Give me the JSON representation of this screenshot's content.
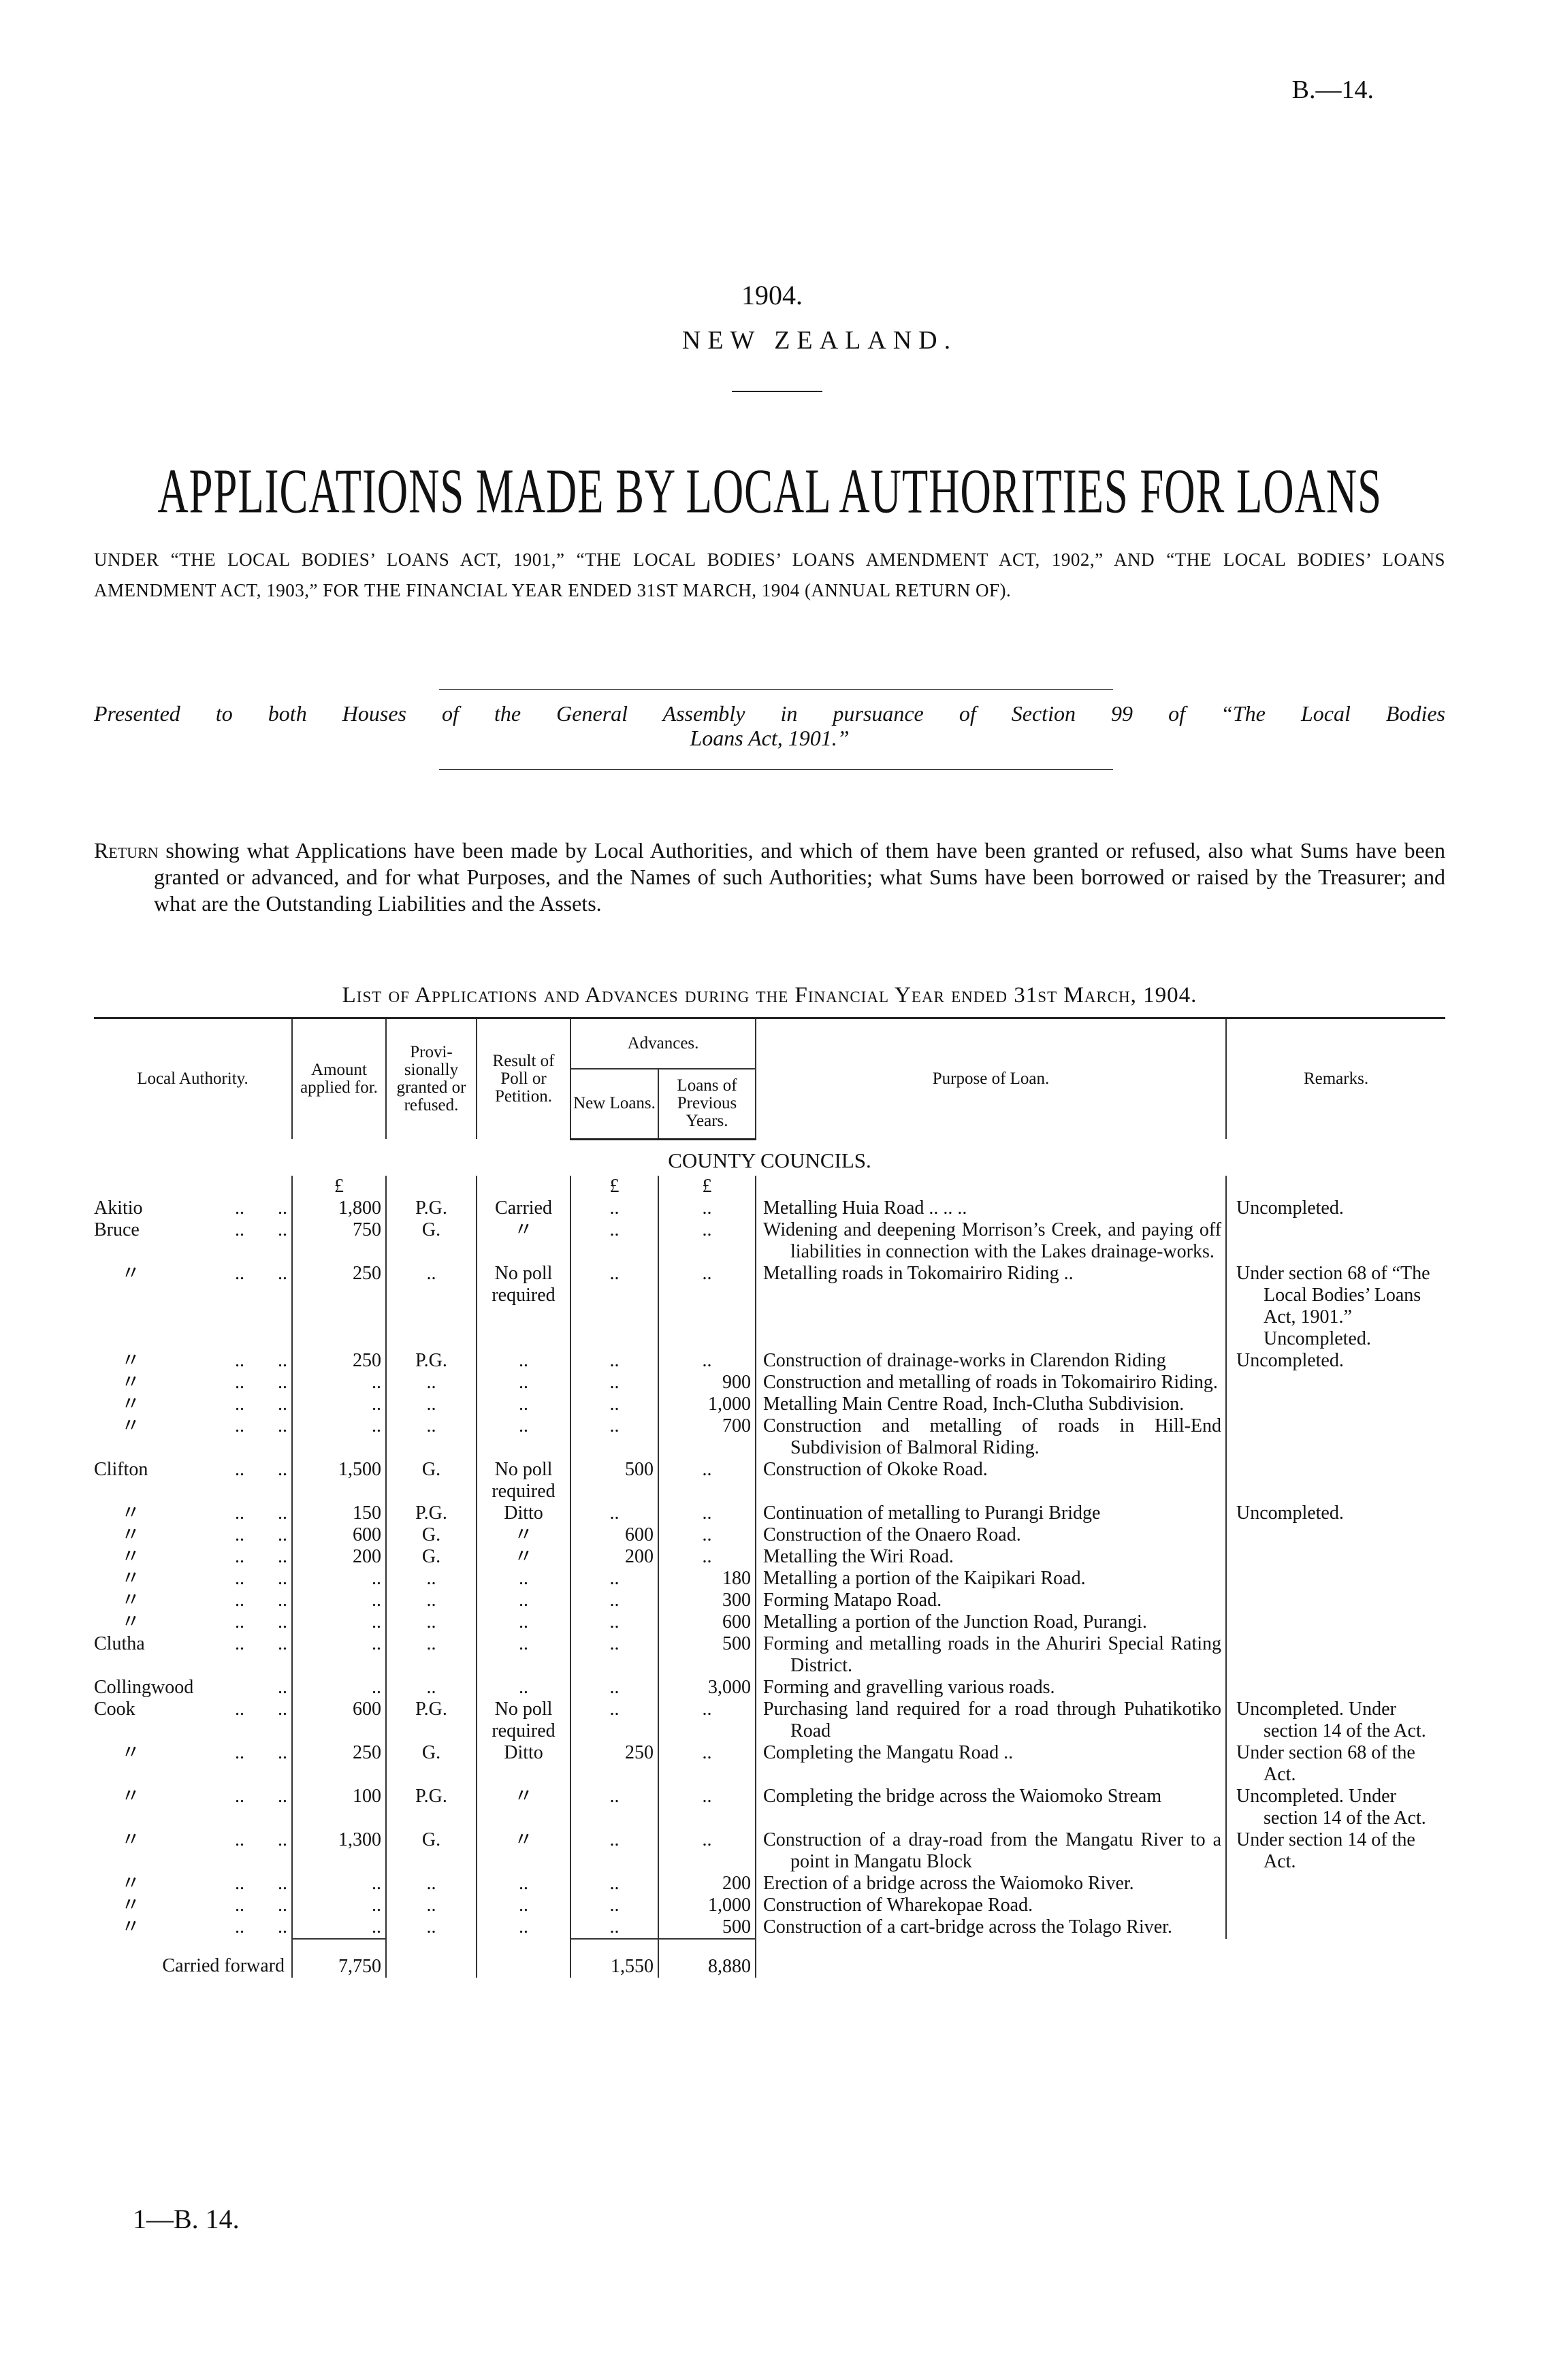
{
  "header": {
    "reference": "B.—14.",
    "year": "1904.",
    "country": "NEW ZEALAND.",
    "title": "APPLICATIONS MADE BY LOCAL AUTHORITIES FOR LOANS",
    "subtitle": "UNDER “THE LOCAL BODIES’ LOANS ACT, 1901,” “THE LOCAL BODIES’ LOANS AMENDMENT ACT, 1902,” AND “THE LOCAL BODIES’ LOANS AMENDMENT ACT, 1903,” FOR THE FINANCIAL YEAR ENDED 31ST MARCH, 1904 (ANNUAL RETURN OF).",
    "presented_line1": "Presented to both Houses of the General Assembly in pursuance of Section 99 of “The Local Bodies",
    "presented_line2": "Loans Act, 1901.”"
  },
  "return_text": {
    "lead": "Return",
    "body": " showing what Applications have been made by Local Authorities, and which of them have been granted or refused, also what Sums have been granted or advanced, and for what Purposes, and the Names of such Authorities; what Sums have been borrowed or raised by the Treasurer; and what are the Outstanding Liabilities and the Assets."
  },
  "list_title": "List of Applications and Advances during the Financial Year ended 31st March, 1904.",
  "table": {
    "headers": {
      "local_authority": "Local Authority.",
      "amount": "Amount applied for.",
      "provisional": "Provi-sionally granted or refused.",
      "result": "Result of Poll or Petition.",
      "advances": "Advances.",
      "new_loans": "New Loans.",
      "previous_loans": "Loans of Previous Years.",
      "purpose": "Purpose of Loan.",
      "remarks": "Remarks."
    },
    "section": "COUNTY COUNCILS.",
    "currency": "£",
    "rows": [
      {
        "authority": "Akitio",
        "amount": "1,800",
        "prov": "P.G.",
        "result": "Carried",
        "new": "..",
        "prev": "..",
        "purpose": "Metalling Huia Road .. .. ..",
        "remarks": "Uncompleted."
      },
      {
        "authority": "Bruce",
        "amount": "750",
        "prov": "G.",
        "result": "〃",
        "new": "..",
        "prev": "..",
        "purpose": "Widening and deepening Morrison’s Creek, and paying off liabilities in connection with the Lakes drainage-works.",
        "remarks": ""
      },
      {
        "authority": "〃",
        "amount": "250",
        "prov": "..",
        "result": "No poll required",
        "new": "..",
        "prev": "..",
        "purpose": "Metalling roads in Tokomairiro Riding ..",
        "remarks": "Under section 68 of “The Local Bodies’ Loans Act, 1901.” Uncompleted."
      },
      {
        "authority": "〃",
        "amount": "250",
        "prov": "P.G.",
        "result": "..",
        "new": "..",
        "prev": "..",
        "purpose": "Construction of drainage-works in Clarendon Riding",
        "remarks": "Uncompleted."
      },
      {
        "authority": "〃",
        "amount": "..",
        "prov": "..",
        "result": "..",
        "new": "..",
        "prev": "900",
        "purpose": "Construction and metalling of roads in Tokomairiro Riding.",
        "remarks": ""
      },
      {
        "authority": "〃",
        "amount": "..",
        "prov": "..",
        "result": "..",
        "new": "..",
        "prev": "1,000",
        "purpose": "Metalling Main Centre Road, Inch-Clutha Subdivision.",
        "remarks": ""
      },
      {
        "authority": "〃",
        "amount": "..",
        "prov": "..",
        "result": "..",
        "new": "..",
        "prev": "700",
        "purpose": "Construction and metalling of roads in Hill-End Subdivision of Balmoral Riding.",
        "remarks": ""
      },
      {
        "authority": "Clifton",
        "amount": "1,500",
        "prov": "G.",
        "result": "No poll required",
        "new": "500",
        "prev": "..",
        "purpose": "Construction of Okoke Road.",
        "remarks": ""
      },
      {
        "authority": "〃",
        "amount": "150",
        "prov": "P.G.",
        "result": "Ditto",
        "new": "..",
        "prev": "..",
        "purpose": "Continuation of metalling to Purangi Bridge",
        "remarks": "Uncompleted."
      },
      {
        "authority": "〃",
        "amount": "600",
        "prov": "G.",
        "result": "〃",
        "new": "600",
        "prev": "..",
        "purpose": "Construction of the Onaero Road.",
        "remarks": ""
      },
      {
        "authority": "〃",
        "amount": "200",
        "prov": "G.",
        "result": "〃",
        "new": "200",
        "prev": "..",
        "purpose": "Metalling the Wiri Road.",
        "remarks": ""
      },
      {
        "authority": "〃",
        "amount": "..",
        "prov": "..",
        "result": "..",
        "new": "..",
        "prev": "180",
        "purpose": "Metalling a portion of the Kaipikari Road.",
        "remarks": ""
      },
      {
        "authority": "〃",
        "amount": "..",
        "prov": "..",
        "result": "..",
        "new": "..",
        "prev": "300",
        "purpose": "Forming Matapo Road.",
        "remarks": ""
      },
      {
        "authority": "〃",
        "amount": "..",
        "prov": "..",
        "result": "..",
        "new": "..",
        "prev": "600",
        "purpose": "Metalling a portion of the Junction Road, Purangi.",
        "remarks": ""
      },
      {
        "authority": "Clutha",
        "amount": "..",
        "prov": "..",
        "result": "..",
        "new": "..",
        "prev": "500",
        "purpose": "Forming and metalling roads in the Ahuriri Special Rating District.",
        "remarks": ""
      },
      {
        "authority": "Collingwood",
        "amount": "..",
        "prov": "..",
        "result": "..",
        "new": "..",
        "prev": "3,000",
        "purpose": "Forming and gravelling various roads.",
        "remarks": ""
      },
      {
        "authority": "Cook",
        "amount": "600",
        "prov": "P.G.",
        "result": "No poll required",
        "new": "..",
        "prev": "..",
        "purpose": "Purchasing land required for a road through Puhatikotiko Road",
        "remarks": "Uncompleted. Under section 14 of the Act."
      },
      {
        "authority": "〃",
        "amount": "250",
        "prov": "G.",
        "result": "Ditto",
        "new": "250",
        "prev": "..",
        "purpose": "Completing the Mangatu Road ..",
        "remarks": "Under section 68 of the Act."
      },
      {
        "authority": "〃",
        "amount": "100",
        "prov": "P.G.",
        "result": "〃",
        "new": "..",
        "prev": "..",
        "purpose": "Completing the bridge across the Waiomoko Stream",
        "remarks": "Uncompleted. Under section 14 of the Act."
      },
      {
        "authority": "〃",
        "amount": "1,300",
        "prov": "G.",
        "result": "〃",
        "new": "..",
        "prev": "..",
        "purpose": "Construction of a dray-road from the Mangatu River to a point in Mangatu Block",
        "remarks": "Under section 14 of the Act."
      },
      {
        "authority": "〃",
        "amount": "..",
        "prov": "..",
        "result": "..",
        "new": "..",
        "prev": "200",
        "purpose": "Erection of a bridge across the Waiomoko River.",
        "remarks": ""
      },
      {
        "authority": "〃",
        "amount": "..",
        "prov": "..",
        "result": "..",
        "new": "..",
        "prev": "1,000",
        "purpose": "Construction of Wharekopae Road.",
        "remarks": ""
      },
      {
        "authority": "〃",
        "amount": "..",
        "prov": "..",
        "result": "..",
        "new": "..",
        "prev": "500",
        "purpose": "Construction of a cart-bridge across the Tolago River.",
        "remarks": ""
      }
    ],
    "total": {
      "label": "Carried forward",
      "amount": "7,750",
      "new": "1,550",
      "prev": "8,880"
    }
  },
  "footer": "1—B. 14."
}
